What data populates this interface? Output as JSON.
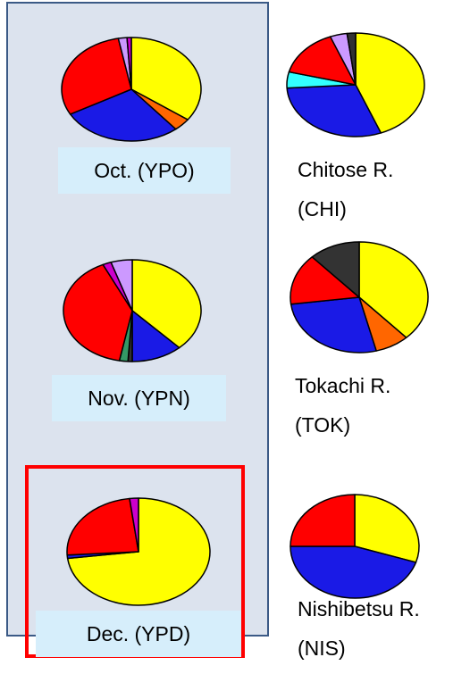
{
  "chart_data": [
    {
      "type": "pie",
      "title": "Oct. (YPO)",
      "values": [
        35,
        4,
        28,
        30,
        2,
        1
      ],
      "colors": [
        "#ffff00",
        "#ff6600",
        "#1a1ae6",
        "#ff0000",
        "#cc99ff",
        "#cc00cc"
      ]
    },
    {
      "type": "pie",
      "title": "Chitose R. (CHI)",
      "values": [
        44,
        30,
        5,
        15,
        4,
        2
      ],
      "colors": [
        "#ffff00",
        "#1a1ae6",
        "#33ffff",
        "#ff0000",
        "#cc99ff",
        "#333333"
      ]
    },
    {
      "type": "pie",
      "title": "Nov. (YPN)",
      "values": [
        38,
        12,
        1,
        2,
        40,
        2,
        5
      ],
      "colors": [
        "#ffff00",
        "#1a1ae6",
        "#333333",
        "#339966",
        "#ff0000",
        "#cc00cc",
        "#cc99ff"
      ]
    },
    {
      "type": "pie",
      "title": "Tokachi R. (TOK)",
      "values": [
        38,
        8,
        27,
        15,
        12
      ],
      "colors": [
        "#ffff00",
        "#ff6600",
        "#1a1ae6",
        "#ff0000",
        "#333333"
      ]
    },
    {
      "type": "pie",
      "title": "Dec. (YPD)",
      "values": [
        73,
        1,
        24,
        2
      ],
      "colors": [
        "#ffff00",
        "#1a1ae6",
        "#ff0000",
        "#cc00cc"
      ]
    },
    {
      "type": "pie",
      "title": "Nishibetsu R. (NIS)",
      "values": [
        30,
        45,
        25
      ],
      "colors": [
        "#ffff00",
        "#1a1ae6",
        "#ff0000"
      ]
    }
  ]
}
